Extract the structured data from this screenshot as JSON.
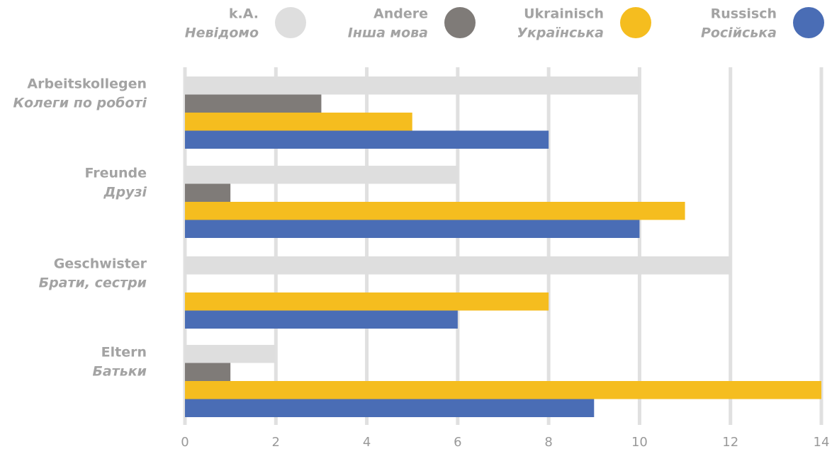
{
  "chart_data": {
    "type": "bar",
    "orientation": "horizontal",
    "categories": [
      "Arbeitskollegen",
      "Freunde",
      "Geschwister",
      "Eltern"
    ],
    "categories_translation": [
      "Колеги по роботі",
      "Друзі",
      "Брати, сестри",
      "Батьки"
    ],
    "series": [
      {
        "name": "k.A.",
        "name_translation": "Невідомо",
        "color": "#dedede",
        "values": [
          10,
          6,
          12,
          2
        ]
      },
      {
        "name": "Andere",
        "name_translation": "Інша мова",
        "color": "#7f7b78",
        "values": [
          3,
          1,
          0,
          1
        ]
      },
      {
        "name": "Ukrainisch",
        "name_translation": "Українська",
        "color": "#f5bd1f",
        "values": [
          5,
          11,
          8,
          14
        ]
      },
      {
        "name": "Russisch",
        "name_translation": "Російська",
        "color": "#4a6db5",
        "values": [
          8,
          10,
          6,
          9
        ]
      }
    ],
    "xlim": [
      0,
      14
    ],
    "xticks": [
      0,
      2,
      4,
      6,
      8,
      10,
      12,
      14
    ],
    "grid": true,
    "legend": "top"
  }
}
